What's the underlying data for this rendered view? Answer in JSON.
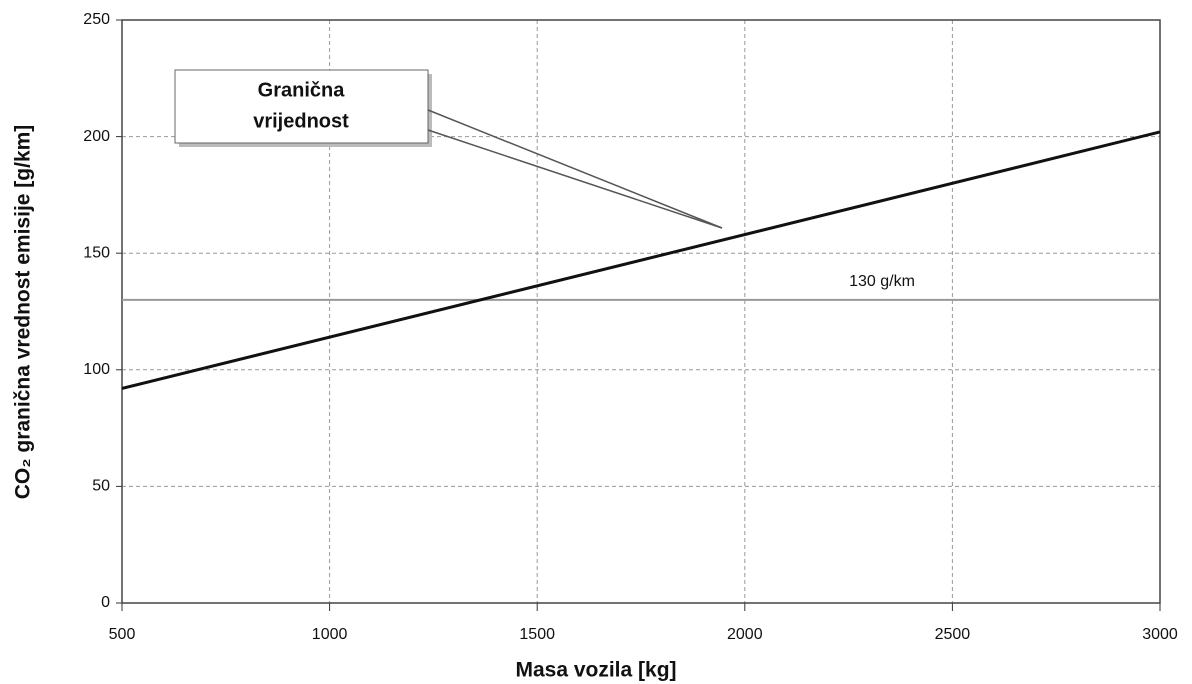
{
  "chart_data": {
    "type": "line",
    "x_label": "Masa vozila [kg]",
    "y_label": "CO₂ granična vrednost emisije [g/km]",
    "x": [
      500,
      3000
    ],
    "series": [
      {
        "color": "#111111",
        "values": [
          92,
          202
        ]
      }
    ],
    "reference_line": {
      "value": 130,
      "label": "130 g/km",
      "color": "#999999"
    },
    "annotation": [
      "Granična",
      "vrijednost"
    ],
    "xlim": [
      500,
      3000
    ],
    "xticks": [
      500,
      1000,
      1500,
      2000,
      2500,
      3000
    ],
    "ylim": [
      0,
      250
    ],
    "yticks": [
      0,
      50,
      100,
      150,
      200,
      250
    ],
    "grid": true
  }
}
